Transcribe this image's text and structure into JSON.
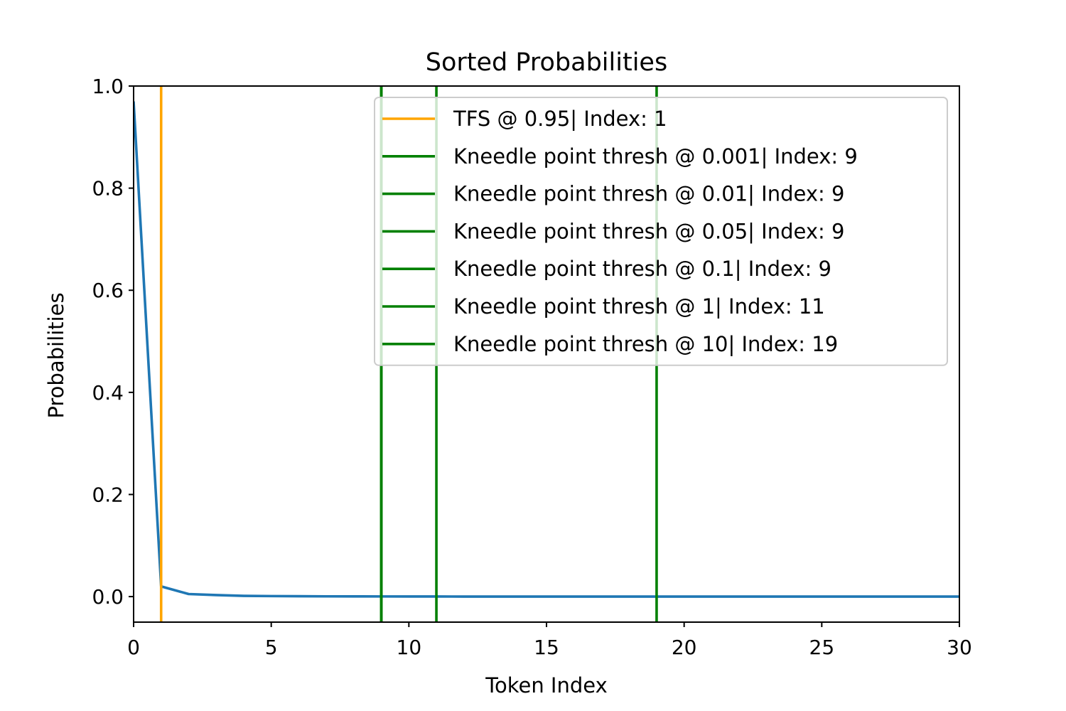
{
  "chart_data": {
    "type": "line",
    "title": "Sorted Probabilities",
    "xlabel": "Token Index",
    "ylabel": "Probabilities",
    "xlim": [
      0,
      30
    ],
    "ylim": [
      -0.05,
      1.0
    ],
    "xticks": [
      0,
      5,
      10,
      15,
      20,
      25,
      30
    ],
    "yticks": [
      0.0,
      0.2,
      0.4,
      0.6,
      0.8,
      1.0
    ],
    "xtick_labels": [
      "0",
      "5",
      "10",
      "15",
      "20",
      "25",
      "30"
    ],
    "ytick_labels": [
      "0.0",
      "0.2",
      "0.4",
      "0.6",
      "0.8",
      "1.0"
    ],
    "grid": false,
    "legend_position": "top-right",
    "series": [
      {
        "color": "#1f77b4",
        "x": [
          0,
          1,
          2,
          3,
          4,
          5,
          6,
          7,
          8,
          9,
          10,
          11,
          12,
          13,
          14,
          15,
          16,
          17,
          18,
          19,
          20,
          21,
          22,
          23,
          24,
          25,
          26,
          27,
          28,
          29,
          30
        ],
        "y": [
          0.97,
          0.02,
          0.005,
          0.003,
          0.0015,
          0.001,
          0.0007,
          0.0005,
          0.0004,
          0.0003,
          0.0002,
          0.0002,
          0.0001,
          0.0001,
          0.0001,
          0.0001,
          0.0001,
          0.0001,
          0.0001,
          0.0,
          0.0,
          0.0,
          0.0,
          0.0,
          0.0,
          0.0,
          0.0,
          0.0,
          0.0,
          0.0,
          0.0
        ]
      }
    ],
    "vlines": [
      {
        "x": 1,
        "color": "#ffa500",
        "label": "TFS @ 0.95| Index: 1"
      },
      {
        "x": 9,
        "color": "#008000",
        "label": "Kneedle point thresh @ 0.001| Index: 9"
      },
      {
        "x": 9,
        "color": "#008000",
        "label": "Kneedle point thresh @ 0.01| Index: 9"
      },
      {
        "x": 9,
        "color": "#008000",
        "label": "Kneedle point thresh @ 0.05| Index: 9"
      },
      {
        "x": 9,
        "color": "#008000",
        "label": "Kneedle point thresh @ 0.1| Index: 9"
      },
      {
        "x": 11,
        "color": "#008000",
        "label": "Kneedle point thresh @ 1| Index: 11"
      },
      {
        "x": 19,
        "color": "#008000",
        "label": "Kneedle point thresh @ 10| Index: 19"
      }
    ]
  }
}
